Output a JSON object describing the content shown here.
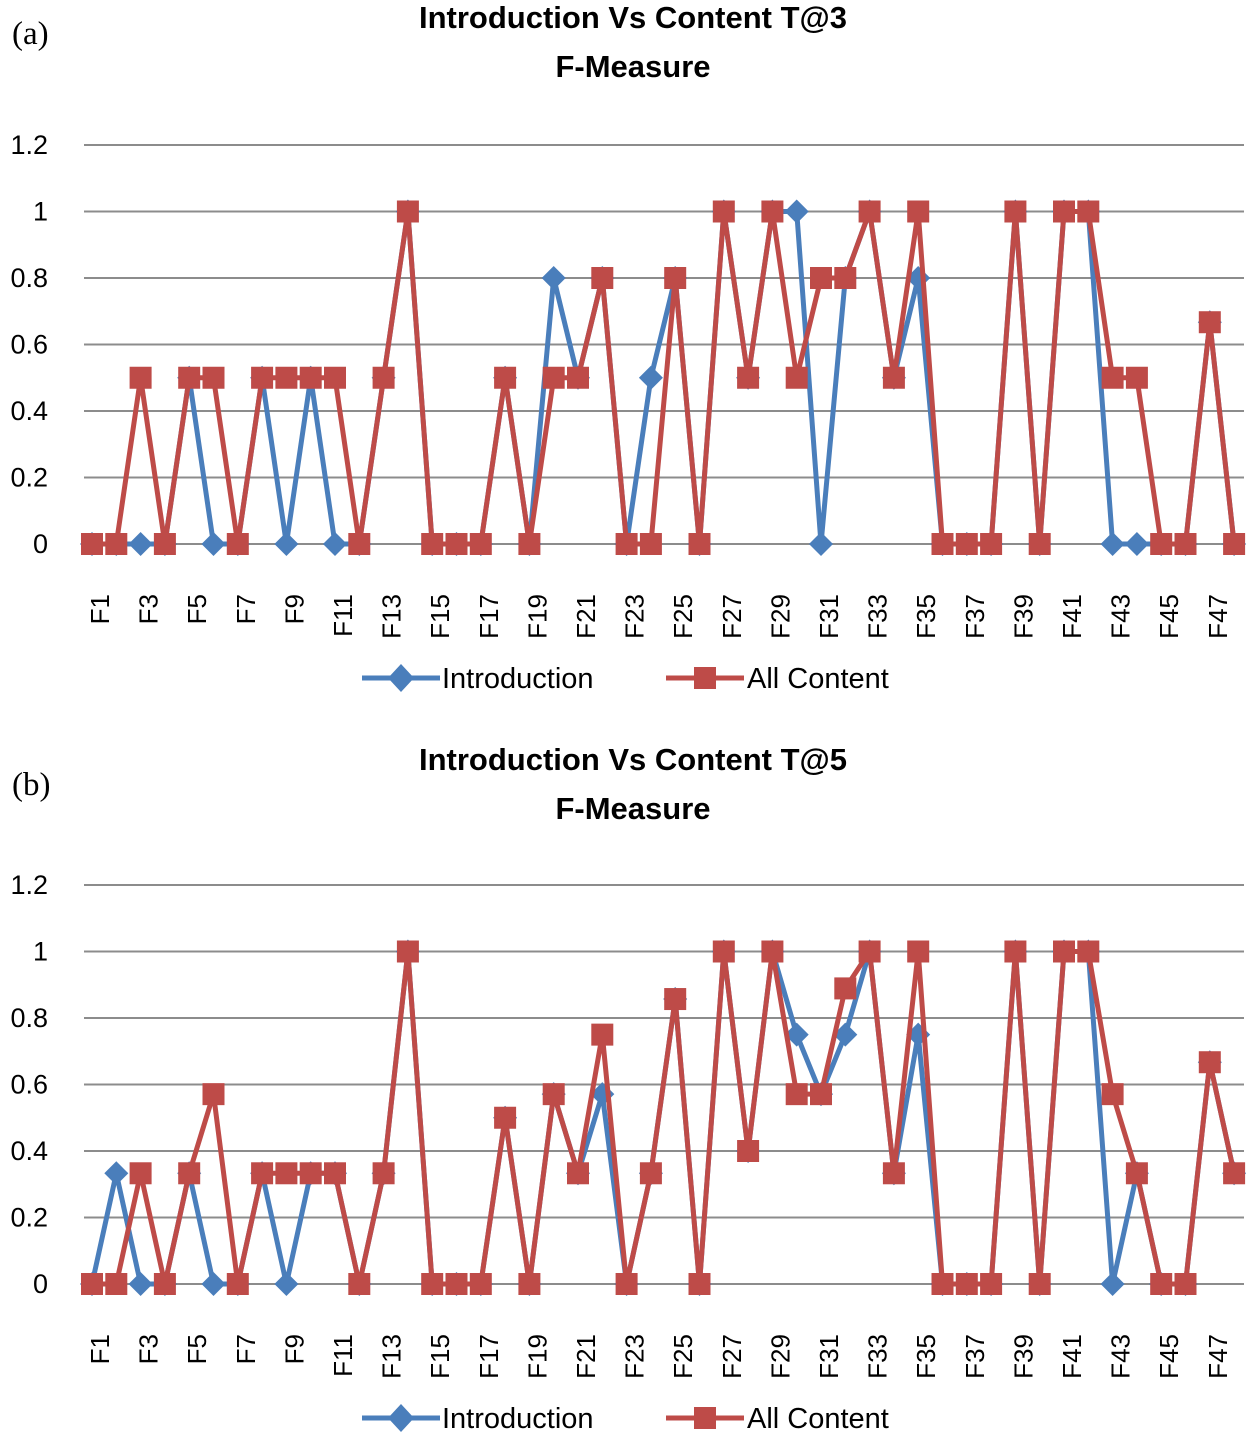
{
  "colors": {
    "introduction": "#4a7ebb",
    "all_content": "#be4b48"
  },
  "chart_data": [
    {
      "panel_label": "(a)",
      "type": "line",
      "title": "Introduction Vs Content T@3",
      "subtitle": "F-Measure",
      "ylim": [
        0,
        1.2
      ],
      "yticks": [
        "0",
        "0.2",
        "0.4",
        "0.6",
        "0.8",
        "1",
        "1.2"
      ],
      "categories": [
        "F1",
        "F2",
        "F3",
        "F4",
        "F5",
        "F6",
        "F7",
        "F8",
        "F9",
        "F10",
        "F11",
        "F12",
        "F13",
        "F14",
        "F15",
        "F16",
        "F17",
        "F18",
        "F19",
        "F20",
        "F21",
        "F22",
        "F23",
        "F24",
        "F25",
        "F26",
        "F27",
        "F28",
        "F29",
        "F30",
        "F31",
        "F32",
        "F33",
        "F34",
        "F35",
        "F36",
        "F37",
        "F38",
        "F39",
        "F40",
        "F41",
        "F42",
        "F43",
        "F44",
        "F45",
        "F46",
        "F47",
        "F48"
      ],
      "xtick_labels": [
        "F1",
        "F3",
        "F5",
        "F7",
        "F9",
        "F11",
        "F13",
        "F15",
        "F17",
        "F19",
        "F21",
        "F23",
        "F25",
        "F27",
        "F29",
        "F31",
        "F33",
        "F35",
        "F37",
        "F39",
        "F41",
        "F43",
        "F45",
        "F47"
      ],
      "series": [
        {
          "name": "Introduction",
          "marker": "diamond",
          "values": [
            0,
            0,
            0,
            0,
            0.5,
            0,
            0,
            0.5,
            0,
            0.5,
            0,
            0,
            0.5,
            1,
            0,
            0,
            0,
            0.5,
            0,
            0.8,
            0.5,
            0.8,
            0,
            0.5,
            0.8,
            0,
            1,
            0.5,
            1,
            1,
            0,
            0.8,
            1,
            0.5,
            0.8,
            0,
            0,
            0,
            1,
            0,
            1,
            1,
            0,
            0,
            0,
            0,
            0.667,
            0
          ]
        },
        {
          "name": "All Content",
          "marker": "square",
          "values": [
            0,
            0,
            0.5,
            0,
            0.5,
            0.5,
            0,
            0.5,
            0.5,
            0.5,
            0.5,
            0,
            0.5,
            1,
            0,
            0,
            0,
            0.5,
            0,
            0.5,
            0.5,
            0.8,
            0,
            0,
            0.8,
            0,
            1,
            0.5,
            1,
            0.5,
            0.8,
            0.8,
            1,
            0.5,
            1,
            0,
            0,
            0,
            1,
            0,
            1,
            1,
            0.5,
            0.5,
            0,
            0,
            0.667,
            0
          ]
        }
      ],
      "legend": [
        "Introduction",
        "All Content"
      ]
    },
    {
      "panel_label": "(b)",
      "type": "line",
      "title": "Introduction Vs Content T@5",
      "subtitle": "F-Measure",
      "ylim": [
        0,
        1.2
      ],
      "yticks": [
        "0",
        "0.2",
        "0.4",
        "0.6",
        "0.8",
        "1",
        "1.2"
      ],
      "categories": [
        "F1",
        "F2",
        "F3",
        "F4",
        "F5",
        "F6",
        "F7",
        "F8",
        "F9",
        "F10",
        "F11",
        "F12",
        "F13",
        "F14",
        "F15",
        "F16",
        "F17",
        "F18",
        "F19",
        "F20",
        "F21",
        "F22",
        "F23",
        "F24",
        "F25",
        "F26",
        "F27",
        "F28",
        "F29",
        "F30",
        "F31",
        "F32",
        "F33",
        "F34",
        "F35",
        "F36",
        "F37",
        "F38",
        "F39",
        "F40",
        "F41",
        "F42",
        "F43",
        "F44",
        "F45",
        "F46",
        "F47",
        "F48"
      ],
      "xtick_labels": [
        "F1",
        "F3",
        "F5",
        "F7",
        "F9",
        "F11",
        "F13",
        "F15",
        "F17",
        "F19",
        "F21",
        "F23",
        "F25",
        "F27",
        "F29",
        "F31",
        "F33",
        "F35",
        "F37",
        "F39",
        "F41",
        "F43",
        "F45",
        "F47"
      ],
      "series": [
        {
          "name": "Introduction",
          "marker": "diamond",
          "values": [
            0,
            0.333,
            0,
            0,
            0.333,
            0,
            0,
            0.333,
            0,
            0.333,
            0.333,
            0,
            0.333,
            1,
            0,
            0,
            0,
            0.5,
            0,
            0.571,
            0.333,
            0.571,
            0,
            0.333,
            0.857,
            0,
            1,
            0.4,
            1,
            0.75,
            0.571,
            0.75,
            1,
            0.333,
            0.75,
            0,
            0,
            0,
            1,
            0,
            1,
            1,
            0,
            0.333,
            0,
            0,
            0.667,
            0.333
          ]
        },
        {
          "name": "All Content",
          "marker": "square",
          "values": [
            0,
            0,
            0.333,
            0,
            0.333,
            0.571,
            0,
            0.333,
            0.333,
            0.333,
            0.333,
            0,
            0.333,
            1,
            0,
            0,
            0,
            0.5,
            0,
            0.571,
            0.333,
            0.75,
            0,
            0.333,
            0.857,
            0,
            1,
            0.4,
            1,
            0.571,
            0.571,
            0.889,
            1,
            0.333,
            1,
            0,
            0,
            0,
            1,
            0,
            1,
            1,
            0.571,
            0.333,
            0,
            0,
            0.667,
            0.333
          ]
        }
      ],
      "legend": [
        "Introduction",
        "All Content"
      ]
    }
  ]
}
